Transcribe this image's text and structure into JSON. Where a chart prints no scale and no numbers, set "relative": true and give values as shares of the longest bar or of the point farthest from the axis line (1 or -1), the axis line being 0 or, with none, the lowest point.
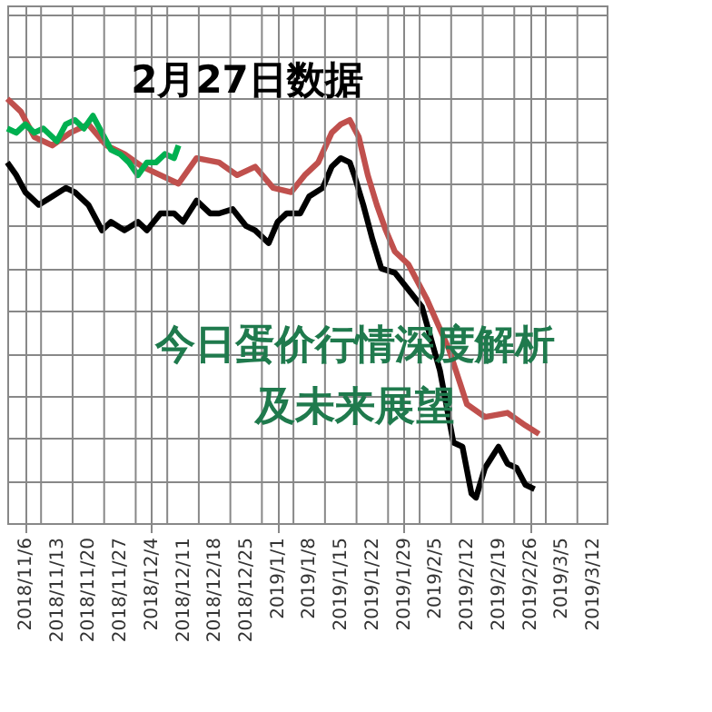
{
  "chart_data": {
    "type": "line",
    "title": "2月27日数据",
    "relative": true,
    "grid": true,
    "legend": false,
    "marker": "none",
    "line_style": "solid",
    "annotations": [
      "今日蛋价行情深度解析及未来展望"
    ],
    "xlim": [
      "2018-11-02",
      "2019-03-15"
    ],
    "xticks": [
      {
        "value": "2018-11-06",
        "label": "2018/11/6"
      },
      {
        "value": "2018-11-13",
        "label": "2018/11/13"
      },
      {
        "value": "2018-11-20",
        "label": "2018/11/20"
      },
      {
        "value": "2018-11-27",
        "label": "2018/11/27"
      },
      {
        "value": "2018-12-04",
        "label": "2018/12/4"
      },
      {
        "value": "2018-12-11",
        "label": "2018/12/11"
      },
      {
        "value": "2018-12-18",
        "label": "2018/12/18"
      },
      {
        "value": "2018-12-25",
        "label": "2018/12/25"
      },
      {
        "value": "2019-01-01",
        "label": "2019/1/1"
      },
      {
        "value": "2019-01-08",
        "label": "2019/1/8"
      },
      {
        "value": "2019-01-15",
        "label": "2019/1/15"
      },
      {
        "value": "2019-01-22",
        "label": "2019/1/22"
      },
      {
        "value": "2019-01-29",
        "label": "2019/1/29"
      },
      {
        "value": "2019-02-05",
        "label": "2019/2/5"
      },
      {
        "value": "2019-02-12",
        "label": "2019/2/12"
      },
      {
        "value": "2019-02-19",
        "label": "2019/2/19"
      },
      {
        "value": "2019-02-26",
        "label": "2019/2/26"
      },
      {
        "value": "2019-03-05",
        "label": "2019/3/5"
      },
      {
        "value": "2019-03-12",
        "label": "2019/3/12"
      }
    ],
    "series": [
      {
        "color": "#c0504d",
        "x": [
          "2018-11-02",
          "2018-11-05",
          "2018-11-08",
          "2018-11-12",
          "2018-11-16",
          "2018-11-20",
          "2018-11-24",
          "2018-11-28",
          "2018-12-02",
          "2018-12-06",
          "2018-12-10",
          "2018-12-14",
          "2018-12-19",
          "2018-12-23",
          "2018-12-27",
          "2018-12-31",
          "2019-01-04",
          "2019-01-07",
          "2019-01-10",
          "2019-01-13",
          "2019-01-15",
          "2019-01-17",
          "2019-01-19",
          "2019-01-21",
          "2019-01-23",
          "2019-01-25",
          "2019-01-27",
          "2019-01-30",
          "2019-02-03",
          "2019-02-08",
          "2019-02-12",
          "2019-02-16",
          "2019-02-21",
          "2019-02-25",
          "2019-02-28"
        ],
        "values": [
          1.0,
          0.97,
          0.91,
          0.89,
          0.92,
          0.94,
          0.89,
          0.87,
          0.84,
          0.82,
          0.8,
          0.86,
          0.85,
          0.82,
          0.84,
          0.79,
          0.78,
          0.82,
          0.85,
          0.92,
          0.94,
          0.95,
          0.91,
          0.82,
          0.75,
          0.69,
          0.64,
          0.61,
          0.53,
          0.41,
          0.28,
          0.25,
          0.26,
          0.23,
          0.21
        ]
      },
      {
        "color": "#00b050",
        "x": [
          "2018-11-02",
          "2018-11-04",
          "2018-11-06",
          "2018-11-08",
          "2018-11-10",
          "2018-11-13",
          "2018-11-15",
          "2018-11-17",
          "2018-11-19",
          "2018-11-21",
          "2018-11-23",
          "2018-11-25",
          "2018-11-27",
          "2018-11-29",
          "2018-12-01",
          "2018-12-03",
          "2018-12-05",
          "2018-12-07",
          "2018-12-09",
          "2018-12-10"
        ],
        "values": [
          0.93,
          0.92,
          0.94,
          0.92,
          0.93,
          0.9,
          0.94,
          0.95,
          0.93,
          0.96,
          0.92,
          0.88,
          0.87,
          0.85,
          0.82,
          0.85,
          0.85,
          0.87,
          0.86,
          0.89
        ]
      },
      {
        "color": "#000000",
        "x": [
          "2018-11-02",
          "2018-11-04",
          "2018-11-06",
          "2018-11-09",
          "2018-11-12",
          "2018-11-15",
          "2018-11-17",
          "2018-11-20",
          "2018-11-23",
          "2018-11-25",
          "2018-11-28",
          "2018-12-01",
          "2018-12-03",
          "2018-12-06",
          "2018-12-09",
          "2018-12-11",
          "2018-12-14",
          "2018-12-17",
          "2018-12-19",
          "2018-12-22",
          "2018-12-25",
          "2018-12-27",
          "2018-12-30",
          "2019-01-01",
          "2019-01-03",
          "2019-01-06",
          "2019-01-08",
          "2019-01-11",
          "2019-01-13",
          "2019-01-15",
          "2019-01-17",
          "2019-01-18",
          "2019-01-20",
          "2019-01-22",
          "2019-01-24",
          "2019-01-27",
          "2019-02-02",
          "2019-02-06",
          "2019-02-09",
          "2019-02-11",
          "2019-02-13",
          "2019-02-14",
          "2019-02-16",
          "2019-02-19",
          "2019-02-21",
          "2019-02-23",
          "2019-02-25",
          "2019-02-27"
        ],
        "values": [
          0.85,
          0.82,
          0.78,
          0.75,
          0.77,
          0.79,
          0.78,
          0.75,
          0.69,
          0.71,
          0.69,
          0.71,
          0.69,
          0.73,
          0.73,
          0.71,
          0.76,
          0.73,
          0.73,
          0.74,
          0.7,
          0.69,
          0.66,
          0.71,
          0.73,
          0.73,
          0.77,
          0.79,
          0.84,
          0.86,
          0.85,
          0.82,
          0.75,
          0.67,
          0.6,
          0.59,
          0.51,
          0.36,
          0.19,
          0.18,
          0.07,
          0.06,
          0.13,
          0.18,
          0.14,
          0.13,
          0.09,
          0.08
        ]
      }
    ]
  }
}
